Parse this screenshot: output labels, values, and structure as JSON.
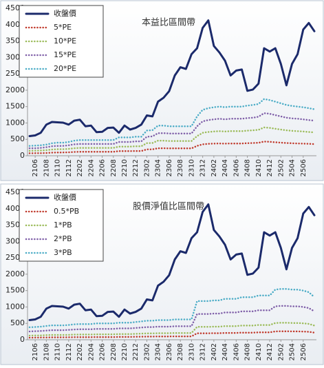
{
  "chart_data": [
    {
      "type": "line",
      "title": "本益比區間帶",
      "legend": "upper left",
      "grid": false,
      "categories": [
        null,
        "2106",
        null,
        "2108",
        null,
        "2110",
        null,
        "2112",
        null,
        "2202",
        null,
        "2204",
        null,
        "2206",
        null,
        "2208",
        null,
        "2210",
        null,
        "2212",
        null,
        "2302",
        null,
        "2304",
        null,
        "2306",
        null,
        "2308",
        null,
        "2310",
        null,
        "2312",
        null,
        "2402",
        null,
        "2404",
        null,
        "2406",
        null,
        "2408",
        null,
        "2410",
        null,
        "2412",
        null,
        "2502",
        null,
        "2504",
        null,
        "2506",
        null,
        null
      ],
      "ylim": [
        0,
        4500
      ],
      "yticks": [
        0,
        500,
        1000,
        1500,
        2000,
        2500,
        3000,
        3500,
        4000,
        4500
      ],
      "series": [
        {
          "name": "收盤價",
          "color": "#1b2a6b",
          "values": [
            600,
            620,
            700,
            950,
            1030,
            1020,
            1010,
            950,
            1070,
            1100,
            900,
            920,
            720,
            730,
            850,
            860,
            700,
            920,
            800,
            850,
            950,
            1230,
            1200,
            1650,
            1770,
            1970,
            2450,
            2700,
            2650,
            3100,
            3280,
            3900,
            4130,
            3350,
            3150,
            2900,
            2450,
            2600,
            2630,
            1980,
            2020,
            2200,
            3280,
            3180,
            3280,
            2800,
            2150,
            2800,
            3100,
            3850,
            4050,
            3800
          ]
        },
        {
          "name": "5*PE",
          "color": "#c0392b",
          "values": [
            75,
            78,
            80,
            85,
            95,
            100,
            100,
            105,
            115,
            120,
            120,
            120,
            120,
            120,
            120,
            120,
            140,
            140,
            140,
            145,
            145,
            193,
            195,
            230,
            230,
            225,
            225,
            225,
            225,
            225,
            300,
            350,
            363,
            370,
            375,
            370,
            375,
            375,
            375,
            383,
            388,
            395,
            433,
            425,
            413,
            400,
            388,
            380,
            375,
            370,
            363,
            355
          ]
        },
        {
          "name": "10*PE",
          "color": "#9bbb59",
          "values": [
            150,
            155,
            160,
            170,
            190,
            200,
            200,
            210,
            230,
            240,
            240,
            240,
            240,
            240,
            240,
            240,
            280,
            280,
            280,
            290,
            290,
            385,
            390,
            460,
            460,
            450,
            450,
            450,
            450,
            450,
            600,
            700,
            725,
            740,
            750,
            740,
            750,
            750,
            750,
            765,
            775,
            790,
            865,
            850,
            825,
            800,
            775,
            760,
            750,
            740,
            725,
            710
          ]
        },
        {
          "name": "15*PE",
          "color": "#7f5fa8",
          "values": [
            230,
            230,
            240,
            260,
            290,
            300,
            300,
            320,
            350,
            360,
            360,
            360,
            360,
            360,
            360,
            360,
            420,
            420,
            420,
            440,
            440,
            580,
            590,
            690,
            690,
            680,
            680,
            680,
            680,
            680,
            900,
            1050,
            1090,
            1110,
            1130,
            1110,
            1130,
            1130,
            1130,
            1150,
            1160,
            1190,
            1300,
            1280,
            1240,
            1200,
            1160,
            1140,
            1130,
            1110,
            1090,
            1070
          ]
        },
        {
          "name": "20*PE",
          "color": "#4bacc6",
          "values": [
            300,
            310,
            320,
            340,
            380,
            400,
            400,
            420,
            460,
            480,
            480,
            480,
            480,
            480,
            480,
            480,
            560,
            560,
            560,
            580,
            580,
            770,
            780,
            920,
            920,
            900,
            900,
            900,
            900,
            900,
            1200,
            1400,
            1450,
            1480,
            1500,
            1480,
            1500,
            1500,
            1500,
            1530,
            1550,
            1580,
            1730,
            1700,
            1650,
            1600,
            1550,
            1520,
            1500,
            1480,
            1450,
            1420
          ]
        }
      ]
    },
    {
      "type": "line",
      "title": "股價淨值比區間帶",
      "legend": "upper left",
      "grid": false,
      "categories": [
        null,
        "2106",
        null,
        "2108",
        null,
        "2110",
        null,
        "2112",
        null,
        "2202",
        null,
        "2204",
        null,
        "2206",
        null,
        "2208",
        null,
        "2210",
        null,
        "2212",
        null,
        "2302",
        null,
        "2304",
        null,
        "2306",
        null,
        "2308",
        null,
        "2310",
        null,
        "2312",
        null,
        "2402",
        null,
        "2404",
        null,
        "2406",
        null,
        "2408",
        null,
        "2410",
        null,
        "2412",
        null,
        "2502",
        null,
        "2504",
        null,
        "2506",
        null,
        null
      ],
      "ylim": [
        0,
        4500
      ],
      "yticks": [
        0,
        500,
        1000,
        1500,
        2000,
        2500,
        3000,
        3500,
        4000,
        4500
      ],
      "series": [
        {
          "name": "收盤價",
          "color": "#1b2a6b",
          "values": [
            600,
            620,
            700,
            950,
            1030,
            1020,
            1010,
            950,
            1070,
            1100,
            900,
            920,
            720,
            730,
            850,
            860,
            700,
            920,
            800,
            850,
            950,
            1230,
            1200,
            1650,
            1770,
            1970,
            2450,
            2700,
            2650,
            3100,
            3280,
            3900,
            4130,
            3350,
            3150,
            2900,
            2450,
            2600,
            2630,
            1980,
            2020,
            2200,
            3280,
            3180,
            3280,
            2800,
            2150,
            2800,
            3100,
            3850,
            4050,
            3800
          ]
        },
        {
          "name": "0.5*PB",
          "color": "#c0392b",
          "values": [
            63,
            65,
            67,
            70,
            73,
            73,
            73,
            75,
            78,
            80,
            80,
            80,
            83,
            83,
            83,
            83,
            87,
            87,
            87,
            90,
            93,
            97,
            97,
            100,
            100,
            100,
            103,
            103,
            103,
            103,
            197,
            197,
            197,
            200,
            200,
            208,
            208,
            208,
            217,
            217,
            217,
            225,
            225,
            225,
            255,
            258,
            258,
            255,
            255,
            250,
            242,
            217
          ]
        },
        {
          "name": "1*PB",
          "color": "#9bbb59",
          "values": [
            127,
            130,
            133,
            140,
            147,
            147,
            147,
            150,
            157,
            160,
            160,
            160,
            167,
            167,
            167,
            167,
            173,
            173,
            173,
            180,
            187,
            193,
            193,
            200,
            200,
            200,
            207,
            207,
            207,
            207,
            393,
            393,
            393,
            400,
            400,
            417,
            417,
            417,
            433,
            433,
            433,
            450,
            450,
            450,
            510,
            517,
            517,
            510,
            510,
            500,
            483,
            433
          ]
        },
        {
          "name": "2*PB",
          "color": "#7f5fa8",
          "values": [
            253,
            260,
            267,
            280,
            293,
            293,
            293,
            300,
            313,
            320,
            320,
            320,
            333,
            333,
            333,
            333,
            347,
            347,
            347,
            360,
            373,
            387,
            387,
            400,
            400,
            400,
            413,
            413,
            413,
            413,
            787,
            787,
            787,
            800,
            800,
            833,
            833,
            833,
            867,
            867,
            867,
            900,
            900,
            900,
            1020,
            1033,
            1033,
            1020,
            1020,
            1000,
            967,
            867
          ]
        },
        {
          "name": "3*PB",
          "color": "#4bacc6",
          "values": [
            380,
            390,
            400,
            420,
            440,
            440,
            440,
            450,
            470,
            480,
            480,
            480,
            500,
            500,
            500,
            500,
            520,
            520,
            520,
            540,
            560,
            580,
            580,
            600,
            600,
            600,
            620,
            620,
            620,
            620,
            1180,
            1180,
            1180,
            1200,
            1200,
            1250,
            1250,
            1250,
            1300,
            1300,
            1300,
            1350,
            1350,
            1350,
            1530,
            1550,
            1550,
            1530,
            1530,
            1500,
            1450,
            1300
          ]
        }
      ]
    }
  ]
}
